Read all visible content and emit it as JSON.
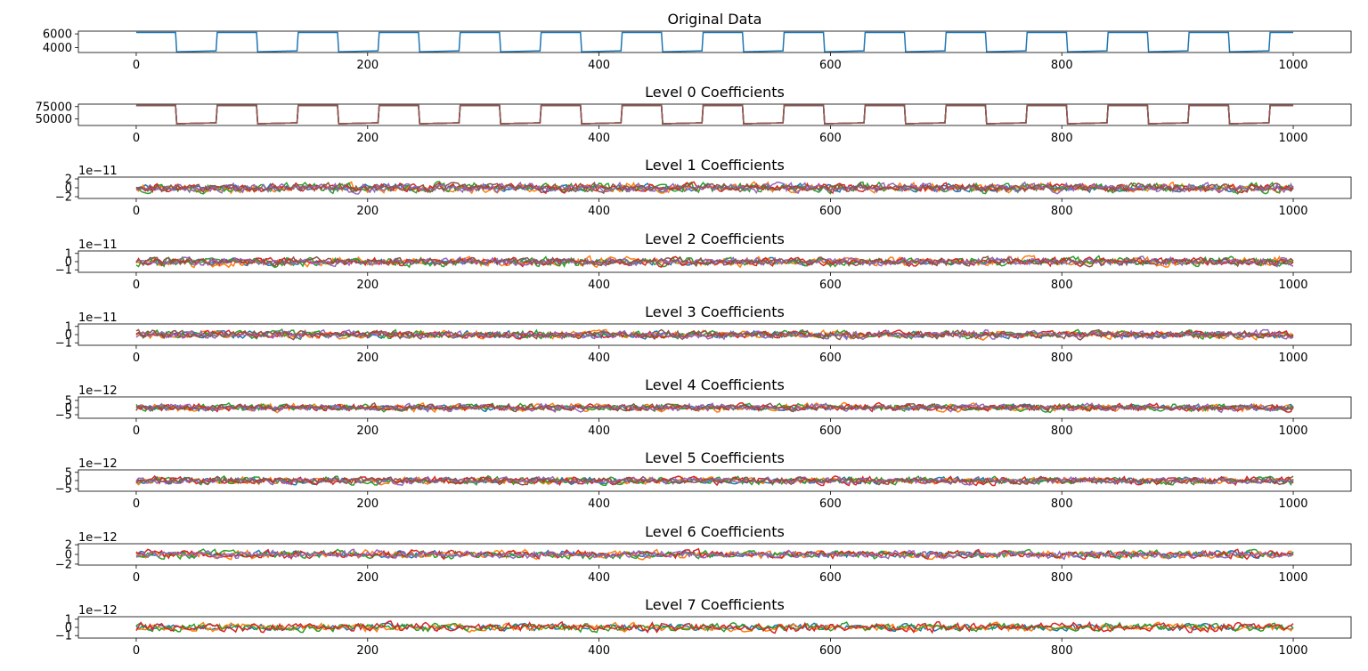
{
  "chart_data": [
    {
      "type": "line",
      "title": "Original Data",
      "xlim": [
        -50,
        1050
      ],
      "ylim": [
        3300,
        6400
      ],
      "xticks": [
        "0",
        "200",
        "400",
        "600",
        "800",
        "1000"
      ],
      "yticks": [
        {
          "value": 6000,
          "label": "6000"
        },
        {
          "value": 4000,
          "label": "4000"
        }
      ],
      "offset_label": "",
      "series": [
        {
          "color": "#1f77b4",
          "kind": "square",
          "high": 6200,
          "low": 3400,
          "period": 70,
          "duty": 35
        }
      ]
    },
    {
      "type": "line",
      "title": "Level 0 Coefficients",
      "xlim": [
        -50,
        1050
      ],
      "ylim": [
        37000,
        80000
      ],
      "xticks": [
        "0",
        "200",
        "400",
        "600",
        "800",
        "1000"
      ],
      "yticks": [
        {
          "value": 75000,
          "label": "75000"
        },
        {
          "value": 50000,
          "label": "50000"
        }
      ],
      "offset_label": "",
      "series": [
        {
          "color": "#1f77b4",
          "kind": "square",
          "high": 77000,
          "low": 40500,
          "period": 70,
          "duty": 35
        },
        {
          "color": "#ff7f0e",
          "kind": "square",
          "high": 77000,
          "low": 40500,
          "period": 70,
          "duty": 35
        },
        {
          "color": "#2ca02c",
          "kind": "square",
          "high": 77000,
          "low": 40500,
          "period": 70,
          "duty": 35
        },
        {
          "color": "#d62728",
          "kind": "square",
          "high": 77000,
          "low": 40500,
          "period": 70,
          "duty": 35
        },
        {
          "color": "#9467bd",
          "kind": "square",
          "high": 77000,
          "low": 40500,
          "period": 70,
          "duty": 35
        },
        {
          "color": "#8c564b",
          "kind": "square",
          "high": 77000,
          "low": 40500,
          "period": 70,
          "duty": 35
        }
      ]
    },
    {
      "type": "line",
      "title": "Level 1 Coefficients",
      "xlim": [
        -50,
        1050
      ],
      "ylim": [
        -2.4,
        2.4
      ],
      "xticks": [
        "0",
        "200",
        "400",
        "600",
        "800",
        "1000"
      ],
      "yticks": [
        {
          "value": 2,
          "label": "2"
        },
        {
          "value": 0,
          "label": "0"
        },
        {
          "value": -2,
          "label": "−2"
        }
      ],
      "offset_label": "1e−11",
      "series": [
        {
          "color": "#1f77b4",
          "kind": "noise",
          "amp": 0.6,
          "seed": 11
        },
        {
          "color": "#ff7f0e",
          "kind": "noise",
          "amp": 0.75,
          "seed": 12
        },
        {
          "color": "#2ca02c",
          "kind": "noise",
          "amp": 0.8,
          "seed": 13
        },
        {
          "color": "#d62728",
          "kind": "noise",
          "amp": 0.7,
          "seed": 14
        },
        {
          "color": "#9467bd",
          "kind": "noise",
          "amp": 0.75,
          "seed": 15
        },
        {
          "color": "#8c564b",
          "kind": "noise",
          "amp": 0.65,
          "seed": 16
        }
      ]
    },
    {
      "type": "line",
      "title": "Level 2 Coefficients",
      "xlim": [
        -50,
        1050
      ],
      "ylim": [
        -1.3,
        1.3
      ],
      "xticks": [
        "0",
        "200",
        "400",
        "600",
        "800",
        "1000"
      ],
      "yticks": [
        {
          "value": 1,
          "label": "1"
        },
        {
          "value": 0,
          "label": "0"
        },
        {
          "value": -1,
          "label": "−1"
        }
      ],
      "offset_label": "1e−11",
      "series": [
        {
          "color": "#1f77b4",
          "kind": "noise",
          "amp": 0.3,
          "seed": 21
        },
        {
          "color": "#ff7f0e",
          "kind": "noise",
          "amp": 0.4,
          "seed": 22
        },
        {
          "color": "#2ca02c",
          "kind": "noise",
          "amp": 0.4,
          "seed": 23
        },
        {
          "color": "#d62728",
          "kind": "noise",
          "amp": 0.35,
          "seed": 24
        },
        {
          "color": "#9467bd",
          "kind": "noise",
          "amp": 0.35,
          "seed": 25
        },
        {
          "color": "#8c564b",
          "kind": "noise",
          "amp": 0.35,
          "seed": 26
        }
      ]
    },
    {
      "type": "line",
      "title": "Level 3 Coefficients",
      "xlim": [
        -50,
        1050
      ],
      "ylim": [
        -1.3,
        1.3
      ],
      "xticks": [
        "0",
        "200",
        "400",
        "600",
        "800",
        "1000"
      ],
      "yticks": [
        {
          "value": 1,
          "label": "1"
        },
        {
          "value": 0,
          "label": "0"
        },
        {
          "value": -1,
          "label": "−1"
        }
      ],
      "offset_label": "1e−11",
      "series": [
        {
          "color": "#1f77b4",
          "kind": "noise",
          "amp": 0.3,
          "seed": 31
        },
        {
          "color": "#ff7f0e",
          "kind": "noise",
          "amp": 0.35,
          "seed": 32
        },
        {
          "color": "#2ca02c",
          "kind": "noise",
          "amp": 0.35,
          "seed": 33
        },
        {
          "color": "#d62728",
          "kind": "noise",
          "amp": 0.3,
          "seed": 34
        },
        {
          "color": "#9467bd",
          "kind": "noise",
          "amp": 0.35,
          "seed": 35
        },
        {
          "color": "#8c564b",
          "kind": "noise",
          "amp": 0.35,
          "seed": 36
        }
      ]
    },
    {
      "type": "line",
      "title": "Level 4 Coefficients",
      "xlim": [
        -50,
        1050
      ],
      "ylim": [
        -7.5,
        7.5
      ],
      "xticks": [
        "0",
        "200",
        "400",
        "600",
        "800",
        "1000"
      ],
      "yticks": [
        {
          "value": 5,
          "label": "5"
        },
        {
          "value": 0,
          "label": "0"
        },
        {
          "value": -5,
          "label": "−5"
        }
      ],
      "offset_label": "1e−12",
      "series": [
        {
          "color": "#1f77b4",
          "kind": "noise",
          "amp": 1.5,
          "seed": 41
        },
        {
          "color": "#ff7f0e",
          "kind": "noise",
          "amp": 2.0,
          "seed": 42
        },
        {
          "color": "#2ca02c",
          "kind": "noise",
          "amp": 1.8,
          "seed": 43
        },
        {
          "color": "#d62728",
          "kind": "noise",
          "amp": 1.8,
          "seed": 44
        },
        {
          "color": "#9467bd",
          "kind": "noise",
          "amp": 1.8,
          "seed": 45
        },
        {
          "color": "#8c564b",
          "kind": "noise",
          "amp": 1.7,
          "seed": 46
        }
      ]
    },
    {
      "type": "line",
      "title": "Level 5 Coefficients",
      "xlim": [
        -50,
        1050
      ],
      "ylim": [
        -6.5,
        6.5
      ],
      "xticks": [
        "0",
        "200",
        "400",
        "600",
        "800",
        "1000"
      ],
      "yticks": [
        {
          "value": 5,
          "label": "5"
        },
        {
          "value": 0,
          "label": "0"
        },
        {
          "value": -5,
          "label": "−5"
        }
      ],
      "offset_label": "1e−12",
      "series": [
        {
          "color": "#1f77b4",
          "kind": "noise",
          "amp": 1.4,
          "seed": 51
        },
        {
          "color": "#ff7f0e",
          "kind": "noise",
          "amp": 1.5,
          "seed": 52
        },
        {
          "color": "#2ca02c",
          "kind": "noise",
          "amp": 1.7,
          "seed": 53
        },
        {
          "color": "#d62728",
          "kind": "noise",
          "amp": 1.8,
          "seed": 54
        },
        {
          "color": "#9467bd",
          "kind": "noise",
          "amp": 1.5,
          "seed": 55
        },
        {
          "color": "#8c564b",
          "kind": "noise",
          "amp": 1.5,
          "seed": 56
        }
      ]
    },
    {
      "type": "line",
      "title": "Level 6 Coefficients",
      "xlim": [
        -50,
        1050
      ],
      "ylim": [
        -2.2,
        2.2
      ],
      "xticks": [
        "0",
        "200",
        "400",
        "600",
        "800",
        "1000"
      ],
      "yticks": [
        {
          "value": 2,
          "label": "2"
        },
        {
          "value": 0,
          "label": "0"
        },
        {
          "value": -2,
          "label": "−2"
        }
      ],
      "offset_label": "1e−12",
      "series": [
        {
          "color": "#1f77b4",
          "kind": "noise",
          "amp": 0.5,
          "seed": 61
        },
        {
          "color": "#ff7f0e",
          "kind": "noise",
          "amp": 0.6,
          "seed": 62
        },
        {
          "color": "#2ca02c",
          "kind": "noise",
          "amp": 0.6,
          "seed": 63
        },
        {
          "color": "#d62728",
          "kind": "noise",
          "amp": 0.6,
          "seed": 64
        },
        {
          "color": "#9467bd",
          "kind": "noise",
          "amp": 0.6,
          "seed": 65
        }
      ]
    },
    {
      "type": "line",
      "title": "Level 7 Coefficients",
      "xlim": [
        -50,
        1050
      ],
      "ylim": [
        -1.3,
        1.3
      ],
      "xticks": [
        "0",
        "200",
        "400",
        "600",
        "800",
        "1000"
      ],
      "yticks": [
        {
          "value": 1,
          "label": "1"
        },
        {
          "value": 0,
          "label": "0"
        },
        {
          "value": -1,
          "label": "−1"
        }
      ],
      "offset_label": "1e−12",
      "series": [
        {
          "color": "#1f77b4",
          "kind": "noise",
          "amp": 0.3,
          "seed": 71
        },
        {
          "color": "#ff7f0e",
          "kind": "noise",
          "amp": 0.35,
          "seed": 72
        },
        {
          "color": "#2ca02c",
          "kind": "noise",
          "amp": 0.35,
          "seed": 73
        },
        {
          "color": "#d62728",
          "kind": "noise",
          "amp": 0.4,
          "seed": 74
        }
      ]
    }
  ]
}
